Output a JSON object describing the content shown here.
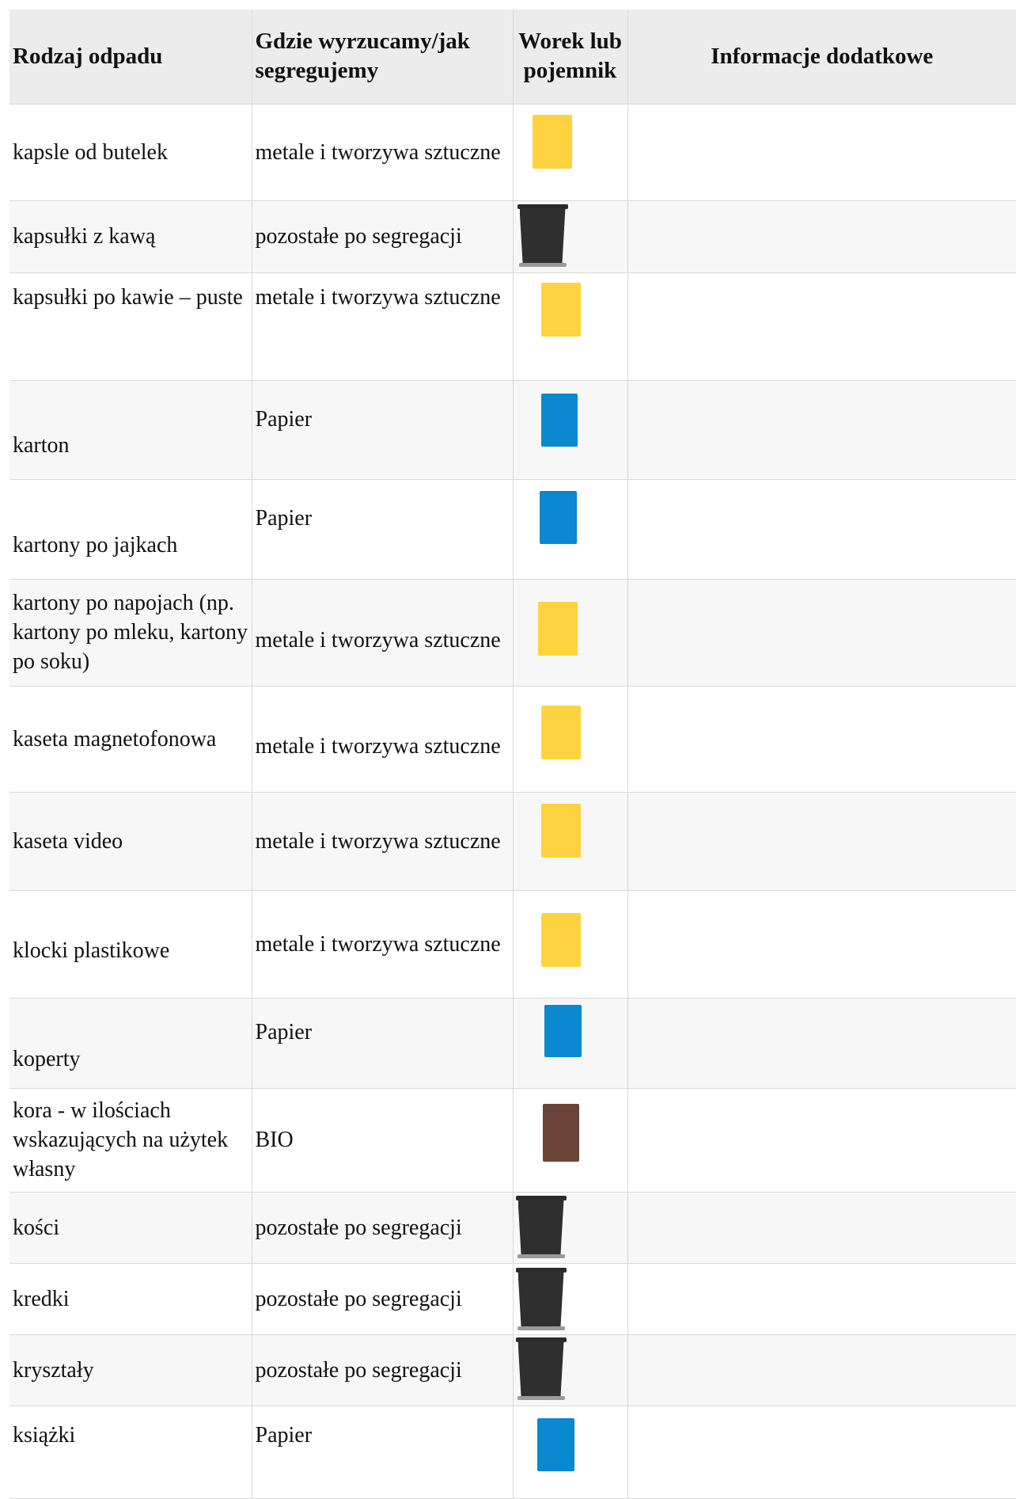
{
  "headers": {
    "type": "Rodzaj odpadu",
    "where": "Gdzie wyrzucamy/jak segregujemy",
    "container": "Worek lub pojemnik",
    "info": "Informacje dodatkowe"
  },
  "rows": [
    {
      "waste": "kapsle od butelek",
      "where": "metale i tworzywa sztuczne",
      "container": "yellow-bag",
      "color": "#ffd23f",
      "info": ""
    },
    {
      "waste": "kapsułki z kawą",
      "where": "pozostałe po segregacji",
      "container": "black-bin",
      "color": "#2f2f2f",
      "info": ""
    },
    {
      "waste": "kapsułki po kawie – puste",
      "where": "metale i tworzywa sztuczne",
      "container": "yellow-bag",
      "color": "#ffd23f",
      "info": ""
    },
    {
      "waste": "karton",
      "where": "Papier",
      "container": "blue-bag",
      "color": "#0a88d0",
      "info": ""
    },
    {
      "waste": "kartony po jajkach",
      "where": "Papier",
      "container": "blue-bag",
      "color": "#0a88d0",
      "info": ""
    },
    {
      "waste": "kartony po napojach (np. kartony po mleku, kartony po soku)",
      "where": "metale i tworzywa sztuczne",
      "container": "yellow-bag",
      "color": "#ffd23f",
      "info": ""
    },
    {
      "waste": "kaseta magnetofonowa",
      "where": "metale i tworzywa sztuczne",
      "container": "yellow-bag",
      "color": "#ffd23f",
      "info": ""
    },
    {
      "waste": "kaseta video",
      "where": "metale i tworzywa sztuczne",
      "container": "yellow-bag",
      "color": "#ffd23f",
      "info": ""
    },
    {
      "waste": "klocki plastikowe",
      "where": "metale i tworzywa sztuczne",
      "container": "yellow-bag",
      "color": "#ffd23f",
      "info": ""
    },
    {
      "waste": "koperty",
      "where": "Papier",
      "container": "blue-bag",
      "color": "#0a88d0",
      "info": ""
    },
    {
      "waste": "kora - w ilościach wskazujących na użytek własny",
      "where": "BIO",
      "container": "brown-bag",
      "color": "#6b4338",
      "info": ""
    },
    {
      "waste": "kości",
      "where": "pozostałe po segregacji",
      "container": "black-bin",
      "color": "#2f2f2f",
      "info": ""
    },
    {
      "waste": "kredki",
      "where": "pozostałe po segregacji",
      "container": "black-bin",
      "color": "#2f2f2f",
      "info": ""
    },
    {
      "waste": "kryształy",
      "where": "pozostałe po segregacji",
      "container": "black-bin",
      "color": "#2f2f2f",
      "info": ""
    },
    {
      "waste": "książki",
      "where": "Papier",
      "container": "blue-bag",
      "color": "#0a88d0",
      "info": ""
    }
  ]
}
